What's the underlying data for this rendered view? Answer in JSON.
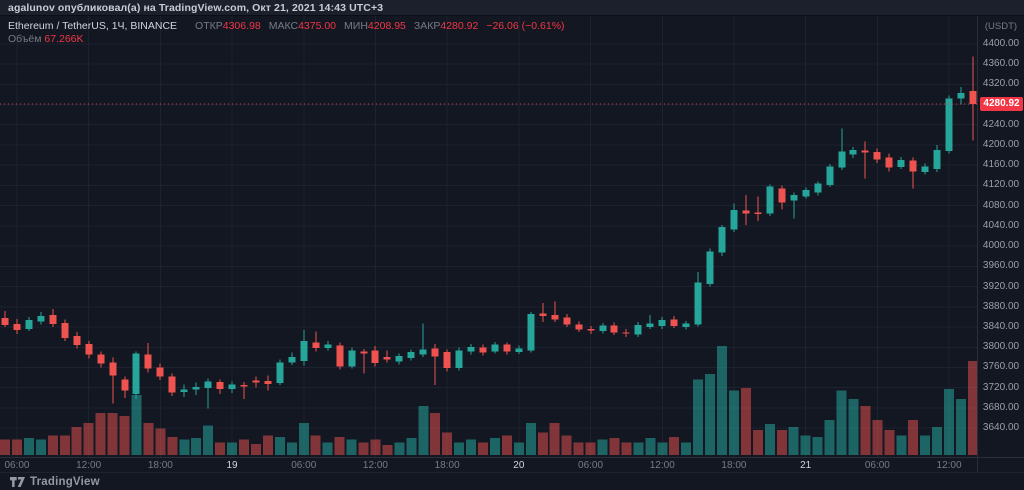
{
  "header": {
    "share_text": "agalunov опубликовал(а) на TradingView.com, Окт 21, 2021 14:43 UTC+3"
  },
  "legend": {
    "symbol": "Ethereum / TetherUS, 1Ч, BINANCE",
    "open_label": "ОТКР",
    "open_value": "4306.98",
    "high_label": "МАКС",
    "high_value": "4375.00",
    "low_label": "МИН",
    "low_value": "4208.95",
    "close_label": "ЗАКР",
    "close_value": "4280.92",
    "change_text": "−26.06 (−0.61%)",
    "volume_label": "Объём",
    "volume_value": "67.266K"
  },
  "price_axis": {
    "currency": "(USDT)",
    "last_price": "4280.92",
    "tick_values": [
      4400,
      4360,
      4320,
      4280,
      4240,
      4200,
      4160,
      4120,
      4080,
      4040,
      4000,
      3960,
      3920,
      3880,
      3840,
      3800,
      3760,
      3720,
      3680,
      3640
    ]
  },
  "time_axis": {
    "ticks": [
      {
        "label": "06:00",
        "index": 1,
        "major": false
      },
      {
        "label": "12:00",
        "index": 7,
        "major": false
      },
      {
        "label": "18:00",
        "index": 13,
        "major": false
      },
      {
        "label": "19",
        "index": 19,
        "major": true
      },
      {
        "label": "06:00",
        "index": 25,
        "major": false
      },
      {
        "label": "12:00",
        "index": 31,
        "major": false
      },
      {
        "label": "18:00",
        "index": 37,
        "major": false
      },
      {
        "label": "20",
        "index": 43,
        "major": true
      },
      {
        "label": "06:00",
        "index": 49,
        "major": false
      },
      {
        "label": "12:00",
        "index": 55,
        "major": false
      },
      {
        "label": "18:00",
        "index": 61,
        "major": false
      },
      {
        "label": "21",
        "index": 67,
        "major": true
      },
      {
        "label": "06:00",
        "index": 73,
        "major": false
      },
      {
        "label": "12:00",
        "index": 79,
        "major": false
      }
    ]
  },
  "footer": {
    "brand": "TradingView"
  },
  "colors": {
    "background": "#131722",
    "grid": "#1c2230",
    "up": "#26a69a",
    "down": "#ef5350",
    "volume_up": "rgba(38,166,154,0.55)",
    "volume_down": "rgba(239,83,80,0.5)",
    "last_price_line": "#f23645",
    "text_muted": "#787b86",
    "text_bright": "#d1d4dc"
  },
  "chart_data": {
    "type": "candlestick",
    "symbol": "ETHUSDT",
    "exchange": "BINANCE",
    "interval": "1Ч",
    "quote_currency": "USDT",
    "last_candle": {
      "open": 4306.98,
      "high": 4375.0,
      "low": 4208.95,
      "close": 4280.92,
      "change": -26.06,
      "change_pct": -0.61,
      "volume": "67.266K"
    },
    "ylim": [
      3583,
      4455
    ],
    "price_grid_step": 40,
    "time_grid_step_hours": 6,
    "columns": [
      "time",
      "open",
      "high",
      "low",
      "close",
      "volume_k"
    ],
    "candles": [
      [
        "18 05:00",
        3858,
        3872,
        3840,
        3844,
        11
      ],
      [
        "18 06:00",
        3846,
        3856,
        3826,
        3834,
        11
      ],
      [
        "18 07:00",
        3836,
        3860,
        3832,
        3854,
        12
      ],
      [
        "18 08:00",
        3851,
        3870,
        3845,
        3862,
        11
      ],
      [
        "18 09:00",
        3864,
        3876,
        3840,
        3846,
        14
      ],
      [
        "18 10:00",
        3848,
        3855,
        3812,
        3818,
        14
      ],
      [
        "18 11:00",
        3822,
        3830,
        3798,
        3804,
        20
      ],
      [
        "18 12:00",
        3806,
        3812,
        3778,
        3786,
        23
      ],
      [
        "18 13:00",
        3786,
        3792,
        3760,
        3768,
        30
      ],
      [
        "18 14:00",
        3770,
        3780,
        3689,
        3744,
        30
      ],
      [
        "18 15:00",
        3736,
        3742,
        3700,
        3714,
        28
      ],
      [
        "18 16:00",
        3708,
        3792,
        3698,
        3788,
        43
      ],
      [
        "18 17:00",
        3786,
        3808,
        3750,
        3758,
        23
      ],
      [
        "18 18:00",
        3760,
        3768,
        3735,
        3742,
        19
      ],
      [
        "18 19:00",
        3742,
        3748,
        3704,
        3711,
        13
      ],
      [
        "18 20:00",
        3712,
        3726,
        3702,
        3716,
        11
      ],
      [
        "18 21:00",
        3716,
        3730,
        3706,
        3721,
        12
      ],
      [
        "18 22:00",
        3719,
        3738,
        3679,
        3732,
        21
      ],
      [
        "18 23:00",
        3731,
        3736,
        3708,
        3717,
        9
      ],
      [
        "19 00:00",
        3717,
        3732,
        3710,
        3726,
        9
      ],
      [
        "19 01:00",
        3725,
        3731,
        3698,
        3722,
        11
      ],
      [
        "19 02:00",
        3734,
        3742,
        3720,
        3730,
        8
      ],
      [
        "19 03:00",
        3733,
        3744,
        3714,
        3727,
        14
      ],
      [
        "19 04:00",
        3729,
        3776,
        3725,
        3770,
        13
      ],
      [
        "19 05:00",
        3770,
        3790,
        3765,
        3781,
        9
      ],
      [
        "19 06:00",
        3773,
        3834,
        3764,
        3812,
        23
      ],
      [
        "19 07:00",
        3809,
        3831,
        3792,
        3799,
        14
      ],
      [
        "19 08:00",
        3799,
        3812,
        3794,
        3805,
        9
      ],
      [
        "19 09:00",
        3803,
        3809,
        3756,
        3762,
        13
      ],
      [
        "19 10:00",
        3762,
        3800,
        3758,
        3794,
        11
      ],
      [
        "19 11:00",
        3792,
        3797,
        3748,
        3788,
        9
      ],
      [
        "19 12:00",
        3794,
        3802,
        3762,
        3769,
        11
      ],
      [
        "19 13:00",
        3781,
        3794,
        3770,
        3776,
        7
      ],
      [
        "19 14:00",
        3772,
        3788,
        3766,
        3783,
        9
      ],
      [
        "19 15:00",
        3779,
        3796,
        3774,
        3791,
        12
      ],
      [
        "19 16:00",
        3786,
        3847,
        3781,
        3796,
        35
      ],
      [
        "19 17:00",
        3798,
        3806,
        3725,
        3782,
        30
      ],
      [
        "19 18:00",
        3791,
        3796,
        3752,
        3759,
        16
      ],
      [
        "19 19:00",
        3759,
        3800,
        3754,
        3794,
        9
      ],
      [
        "19 20:00",
        3792,
        3806,
        3786,
        3801,
        11
      ],
      [
        "19 21:00",
        3800,
        3805,
        3784,
        3790,
        9
      ],
      [
        "19 22:00",
        3792,
        3810,
        3788,
        3805,
        12
      ],
      [
        "19 23:00",
        3805,
        3809,
        3786,
        3792,
        14
      ],
      [
        "20 00:00",
        3791,
        3803,
        3787,
        3798,
        9
      ],
      [
        "20 01:00",
        3794,
        3870,
        3790,
        3866,
        23
      ],
      [
        "20 02:00",
        3867,
        3888,
        3850,
        3862,
        16
      ],
      [
        "20 03:00",
        3864,
        3890,
        3850,
        3855,
        23
      ],
      [
        "20 04:00",
        3859,
        3866,
        3840,
        3845,
        14
      ],
      [
        "20 05:00",
        3845,
        3851,
        3830,
        3835,
        9
      ],
      [
        "20 06:00",
        3836,
        3842,
        3826,
        3833,
        9
      ],
      [
        "20 07:00",
        3832,
        3848,
        3827,
        3843,
        11
      ],
      [
        "20 08:00",
        3843,
        3849,
        3824,
        3829,
        12
      ],
      [
        "20 09:00",
        3829,
        3836,
        3820,
        3827,
        9
      ],
      [
        "20 10:00",
        3825,
        3850,
        3820,
        3844,
        9
      ],
      [
        "20 11:00",
        3840,
        3864,
        3836,
        3847,
        12
      ],
      [
        "20 12:00",
        3842,
        3860,
        3836,
        3854,
        9
      ],
      [
        "20 13:00",
        3855,
        3862,
        3838,
        3842,
        13
      ],
      [
        "20 14:00",
        3840,
        3852,
        3835,
        3847,
        9
      ],
      [
        "20 15:00",
        3845,
        3949,
        3841,
        3928,
        54
      ],
      [
        "20 16:00",
        3925,
        3995,
        3920,
        3989,
        58
      ],
      [
        "20 17:00",
        3987,
        4042,
        3980,
        4038,
        78
      ],
      [
        "20 18:00",
        4033,
        4084,
        4028,
        4071,
        46
      ],
      [
        "20 19:00",
        4070,
        4101,
        4042,
        4064,
        48
      ],
      [
        "20 20:00",
        4066,
        4098,
        4050,
        4063,
        18
      ],
      [
        "20 21:00",
        4064,
        4122,
        4060,
        4118,
        22
      ],
      [
        "20 22:00",
        4114,
        4120,
        4072,
        4086,
        18
      ],
      [
        "20 23:00",
        4090,
        4106,
        4055,
        4101,
        20
      ],
      [
        "21 00:00",
        4098,
        4116,
        4094,
        4111,
        14
      ],
      [
        "21 01:00",
        4106,
        4128,
        4100,
        4124,
        13
      ],
      [
        "21 02:00",
        4121,
        4162,
        4117,
        4157,
        25
      ],
      [
        "21 03:00",
        4155,
        4233,
        4150,
        4187,
        46
      ],
      [
        "21 04:00",
        4181,
        4196,
        4174,
        4190,
        40
      ],
      [
        "21 05:00",
        4189,
        4207,
        4134,
        4185,
        35
      ],
      [
        "21 06:00",
        4186,
        4193,
        4164,
        4171,
        25
      ],
      [
        "21 07:00",
        4175,
        4183,
        4148,
        4155,
        18
      ],
      [
        "21 08:00",
        4156,
        4176,
        4152,
        4170,
        14
      ],
      [
        "21 09:00",
        4169,
        4175,
        4114,
        4148,
        25
      ],
      [
        "21 10:00",
        4147,
        4163,
        4142,
        4157,
        14
      ],
      [
        "21 11:00",
        4152,
        4200,
        4147,
        4190,
        20
      ],
      [
        "21 12:00",
        4188,
        4298,
        4183,
        4292,
        47
      ],
      [
        "21 13:00",
        4292,
        4315,
        4280,
        4303,
        40
      ],
      [
        "21 14:00",
        4306.98,
        4375.0,
        4208.95,
        4280.92,
        67.266
      ]
    ]
  }
}
